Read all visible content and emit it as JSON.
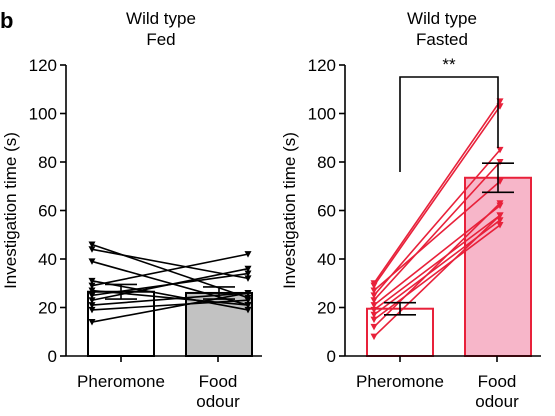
{
  "panel_label": "b",
  "colors": {
    "fed_line": "#000000",
    "fasted_line": "#e8213a",
    "fed_bar_food": "#c2c2c2",
    "fasted_bar_food": "#f7b6c9"
  },
  "chart_data": [
    {
      "type": "bar",
      "title_lines": [
        "Wild type",
        "Fed"
      ],
      "ylabel": "Investigation time (s)",
      "ylim": [
        0,
        120
      ],
      "yticks": [
        0,
        20,
        40,
        60,
        80,
        100,
        120
      ],
      "categories": [
        "Pheromone",
        "Food odour"
      ],
      "category_label_lines": [
        [
          "Pheromone"
        ],
        [
          "Food",
          "odour"
        ]
      ],
      "bar_values": [
        26.5,
        26
      ],
      "error": [
        3,
        2.5
      ],
      "significance": "",
      "pairs": [
        [
          46,
          24
        ],
        [
          44,
          32
        ],
        [
          39,
          21
        ],
        [
          31,
          19
        ],
        [
          29,
          42
        ],
        [
          27,
          21
        ],
        [
          25,
          34
        ],
        [
          23,
          36
        ],
        [
          21,
          26
        ],
        [
          19,
          23
        ],
        [
          14,
          26
        ]
      ]
    },
    {
      "type": "bar",
      "title_lines": [
        "Wild type",
        "Fasted"
      ],
      "ylabel": "Investigation time (s)",
      "ylim": [
        0,
        120
      ],
      "yticks": [
        0,
        20,
        40,
        60,
        80,
        100,
        120
      ],
      "categories": [
        "Pheromone",
        "Food odour"
      ],
      "category_label_lines": [
        [
          "Pheromone"
        ],
        [
          "Food",
          "odour"
        ]
      ],
      "bar_values": [
        19.5,
        73.5
      ],
      "error": [
        2.5,
        6
      ],
      "significance": "**",
      "pairs": [
        [
          30,
          105
        ],
        [
          29,
          103
        ],
        [
          27,
          72
        ],
        [
          25,
          85
        ],
        [
          23,
          80
        ],
        [
          21,
          62
        ],
        [
          19,
          58
        ],
        [
          17,
          56
        ],
        [
          15,
          54
        ],
        [
          12,
          63
        ],
        [
          8,
          58
        ]
      ]
    }
  ]
}
